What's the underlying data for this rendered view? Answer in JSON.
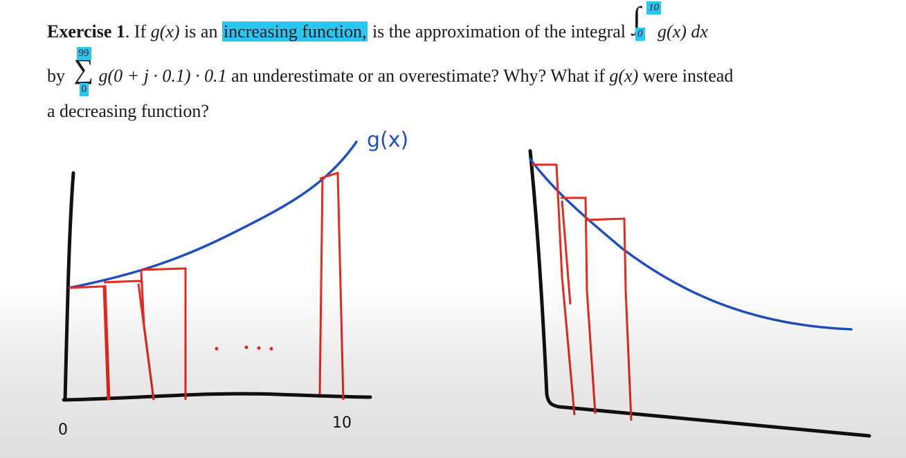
{
  "exercise": {
    "label": "Exercise 1",
    "line1_intro": ". If ",
    "gx": "g(x)",
    "is_an": " is an ",
    "increasing_function": "increasing function,",
    "line1_rest": " is the approximation of the integral",
    "integral_upper": "10",
    "integral_lower": "0",
    "integrand": "g(x) dx",
    "by": "by ",
    "sum_upper": "99",
    "sum_lower": "0",
    "sum_expr": "g(0 + j · 0.1) · 0.1",
    "line2_rest": " an underestimate or an overestimate? Why? What if ",
    "line2_gx": "g(x)",
    "line2_end": " were instead",
    "line3": "a decreasing function?"
  },
  "annotations": {
    "curve_label": "g(x)",
    "x_start": "0",
    "x_end": "10",
    "ellipsis": ". ..."
  },
  "colors": {
    "highlight": "#29c6f2",
    "curve": "#1e4fbf",
    "rectangles": "#e8291c",
    "axes": "#111111"
  }
}
